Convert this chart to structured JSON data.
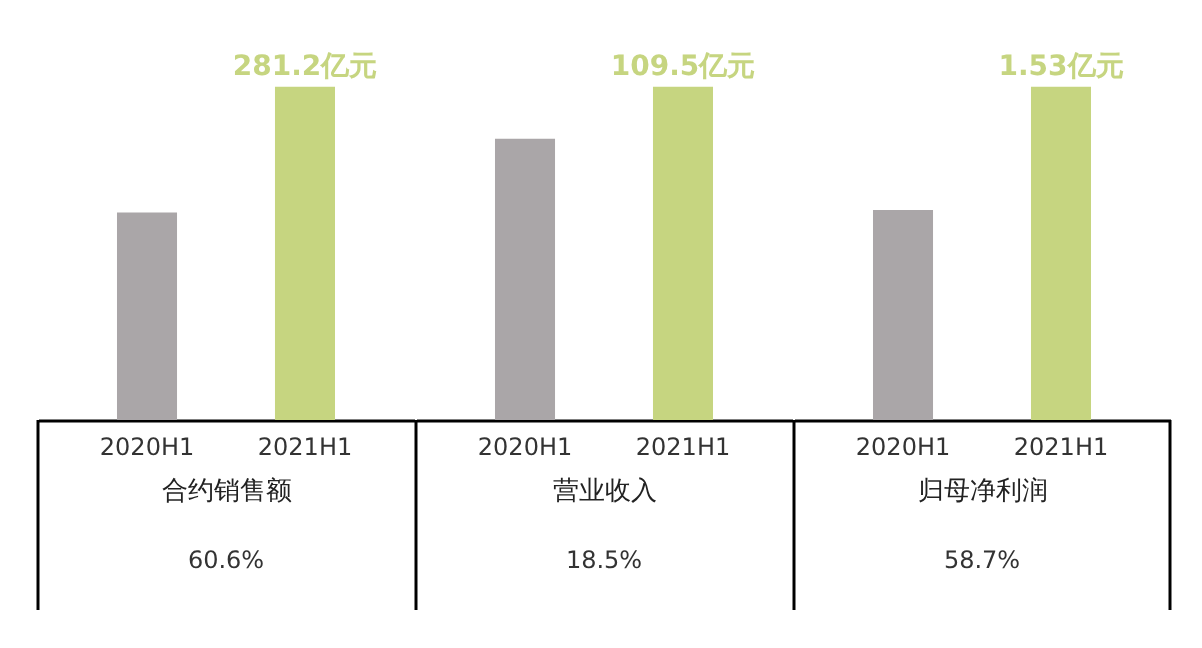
{
  "chart_data": [
    {
      "type": "bar",
      "categories": [
        "2020H1",
        "2021H1"
      ],
      "values": [
        175.1,
        281.2
      ],
      "colors": [
        "#aaa6a8",
        "#c6d580"
      ],
      "value_labels": [
        null,
        "281.2亿元"
      ],
      "xlabel": "合约销售额",
      "annotations": [
        "60.6%"
      ]
    },
    {
      "type": "bar",
      "categories": [
        "2020H1",
        "2021H1"
      ],
      "values": [
        92.4,
        109.5
      ],
      "colors": [
        "#aaa6a8",
        "#c6d580"
      ],
      "value_labels": [
        null,
        "109.5亿元"
      ],
      "xlabel": "营业收入",
      "annotations": [
        "18.5%"
      ]
    },
    {
      "type": "bar",
      "categories": [
        "2020H1",
        "2021H1"
      ],
      "values": [
        0.964,
        1.53
      ],
      "colors": [
        "#aaa6a8",
        "#c6d580"
      ],
      "value_labels": [
        null,
        "1.53亿元"
      ],
      "xlabel": "归母净利润",
      "annotations": [
        "58.7%"
      ]
    }
  ]
}
